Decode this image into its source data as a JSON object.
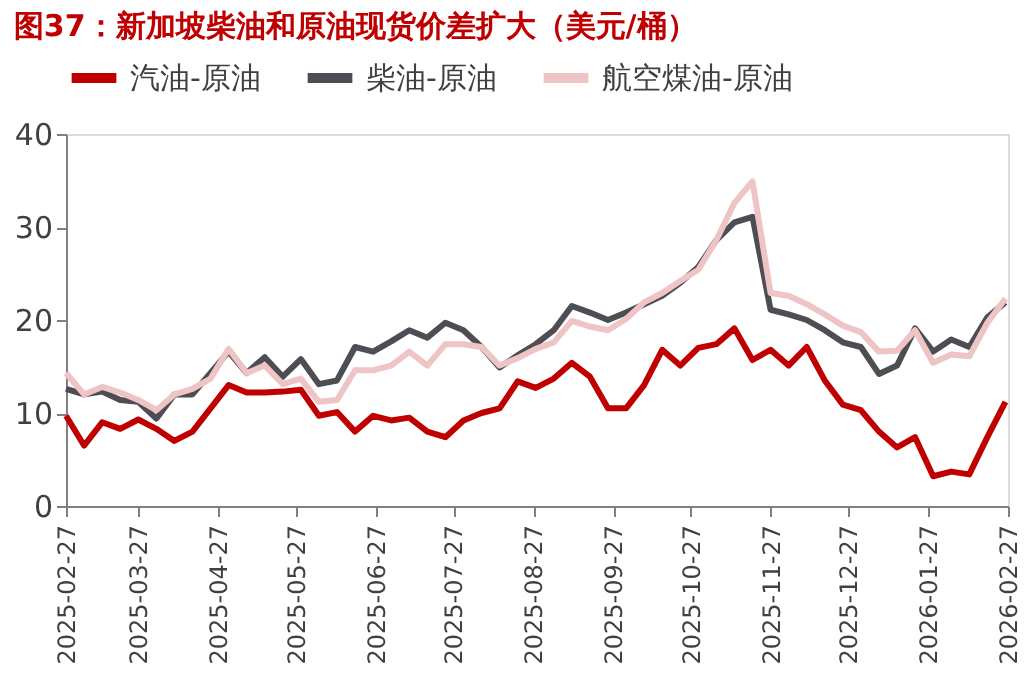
{
  "chart_data": {
    "type": "line",
    "title": "图37：新加坡柴油和原油现货价差扩大（美元/桶）",
    "x": [
      "2025-02-27",
      "2025-03-06",
      "2025-03-13",
      "2025-03-20",
      "2025-03-27",
      "2025-04-03",
      "2025-04-10",
      "2025-04-17",
      "2025-04-24",
      "2025-05-01",
      "2025-05-08",
      "2025-05-15",
      "2025-05-22",
      "2025-05-29",
      "2025-06-05",
      "2025-06-12",
      "2025-06-19",
      "2025-06-26",
      "2025-07-03",
      "2025-07-10",
      "2025-07-17",
      "2025-07-24",
      "2025-07-31",
      "2025-08-07",
      "2025-08-14",
      "2025-08-21",
      "2025-08-28",
      "2025-09-04",
      "2025-09-11",
      "2025-09-18",
      "2025-09-25",
      "2025-10-02",
      "2025-10-09",
      "2025-10-16",
      "2025-10-23",
      "2025-10-30",
      "2025-11-06",
      "2025-11-13",
      "2025-11-20",
      "2025-11-27",
      "2025-12-04",
      "2025-12-11",
      "2025-12-18",
      "2025-12-25",
      "2026-01-01",
      "2026-01-08",
      "2026-01-15",
      "2026-01-22",
      "2026-01-29",
      "2026-02-05",
      "2026-02-12",
      "2026-02-19",
      "2026-02-26"
    ],
    "series": [
      {
        "name": "汽油-原油",
        "color": "#c00000",
        "values": [
          9.7,
          6.5,
          9.0,
          8.3,
          9.3,
          8.3,
          7.0,
          8.0,
          10.5,
          13.0,
          12.2,
          12.2,
          12.3,
          12.5,
          9.7,
          10.1,
          8.0,
          9.7,
          9.2,
          9.5,
          8.0,
          7.4,
          9.2,
          10.0,
          10.5,
          13.4,
          12.7,
          13.7,
          15.4,
          13.9,
          10.5,
          10.5,
          13.0,
          16.8,
          15.1,
          17.0,
          17.4,
          19.1,
          15.7,
          16.8,
          15.1,
          17.1,
          13.5,
          10.9,
          10.3,
          8.0,
          6.3,
          7.4,
          3.2,
          3.7,
          3.4,
          7.4,
          11.2
        ]
      },
      {
        "name": "柴油-原油",
        "color": "#4d4d53",
        "values": [
          12.6,
          12.0,
          12.3,
          11.4,
          11.2,
          9.4,
          12.0,
          12.0,
          14.3,
          16.6,
          14.3,
          16.0,
          13.9,
          15.8,
          13.1,
          13.5,
          17.1,
          16.6,
          17.7,
          18.9,
          18.1,
          19.7,
          18.9,
          17.1,
          14.9,
          16.2,
          17.4,
          18.9,
          21.5,
          20.8,
          20.0,
          20.8,
          21.7,
          22.6,
          24.0,
          25.7,
          28.6,
          30.5,
          31.1,
          21.1,
          20.6,
          20.0,
          18.9,
          17.6,
          17.1,
          14.2,
          15.1,
          19.1,
          16.6,
          17.9,
          17.1,
          20.3,
          21.9
        ]
      },
      {
        "name": "航空煤油-原油",
        "color": "#eec4c4",
        "values": [
          14.3,
          12.0,
          12.8,
          12.2,
          11.4,
          10.3,
          12.0,
          12.6,
          13.7,
          16.9,
          14.3,
          15.1,
          13.1,
          13.7,
          11.2,
          11.4,
          14.6,
          14.6,
          15.1,
          16.6,
          15.1,
          17.4,
          17.4,
          17.1,
          15.1,
          15.9,
          16.9,
          17.6,
          19.9,
          19.3,
          18.9,
          20.1,
          21.9,
          22.9,
          24.2,
          25.4,
          28.6,
          32.6,
          34.9,
          22.9,
          22.6,
          21.7,
          20.6,
          19.4,
          18.7,
          16.6,
          16.7,
          18.9,
          15.4,
          16.3,
          16.1,
          19.7,
          22.3
        ]
      }
    ],
    "xlim": [
      "2025-02-27",
      "2026-02-27"
    ],
    "xticks": [
      "2025-02-27",
      "2025-03-27",
      "2025-04-27",
      "2025-05-27",
      "2025-06-27",
      "2025-07-27",
      "2025-08-27",
      "2025-09-27",
      "2025-10-27",
      "2025-11-27",
      "2025-12-27",
      "2026-01-27",
      "2026-02-27"
    ],
    "ylim": [
      0,
      40
    ],
    "yticks": [
      0,
      10,
      20,
      30,
      40
    ],
    "grid": false,
    "legend": "top",
    "marker": "none",
    "line_style": "solid"
  }
}
